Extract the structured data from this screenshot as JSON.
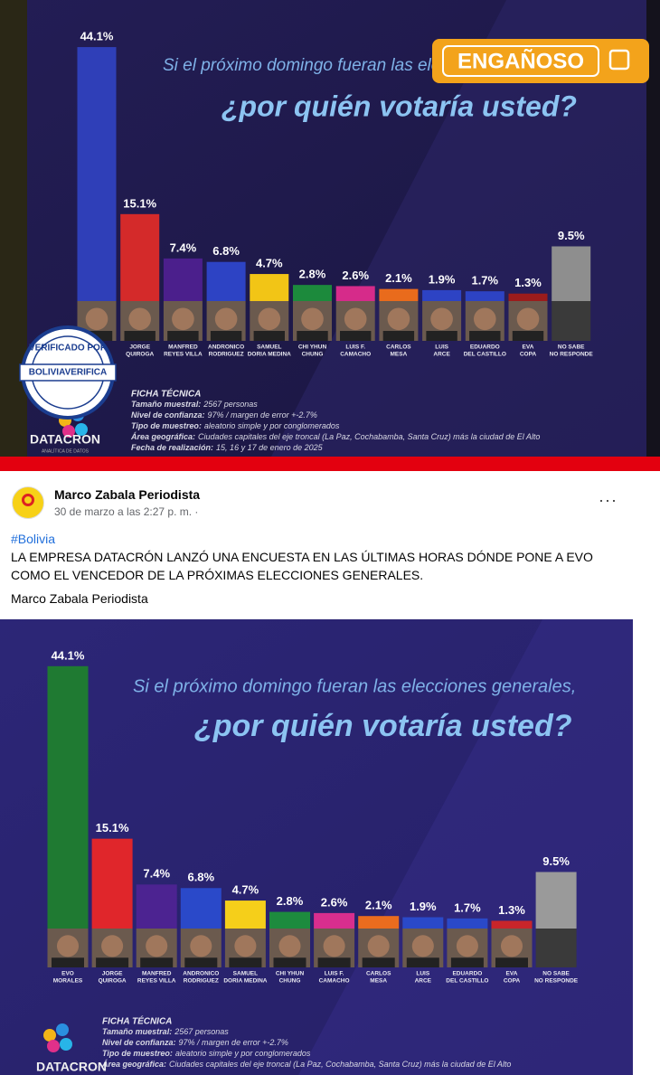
{
  "badge": "ENGAÑOSO",
  "stamp": {
    "top": "VERIFICADO POR",
    "brand": "BOLIVIAVERIFICA"
  },
  "post": {
    "author": "Marco Zabala Periodista",
    "time": "30 de marzo a las 2:27 p. m. ·",
    "menu": "···",
    "hashtag": "#Bolivia",
    "body": "LA EMPRESA DATACRÓN LANZÓ UNA ENCUESTA EN LAS ÚLTIMAS HORAS DÓNDE PONE A EVO COMO EL VENCEDOR DE LA PRÓXIMAS ELECCIONES GENERALES.",
    "signature": "Marco Zabala Periodista"
  },
  "chart_data": [
    {
      "type": "bar",
      "subtitle": "Si el próximo domingo fueran las elecciones generales,",
      "title": "¿por quién votaría usted?",
      "categories": [
        null,
        [
          "JORGE",
          "QUIROGA"
        ],
        [
          "MANFRED",
          "REYES VILLA"
        ],
        [
          "ANDRONICO",
          "RODRIGUEZ"
        ],
        [
          "SAMUEL",
          "DORIA MEDINA"
        ],
        [
          "CHI YHUN",
          "CHUNG"
        ],
        [
          "LUIS F.",
          "CAMACHO"
        ],
        [
          "CARLOS",
          "MESA"
        ],
        [
          "LUIS",
          "ARCE"
        ],
        [
          "EDUARDO",
          "DEL CASTILLO"
        ],
        [
          "EVA",
          "COPA"
        ],
        [
          "NO SABE",
          "NO RESPONDE"
        ]
      ],
      "values": [
        44.1,
        15.1,
        7.4,
        6.8,
        4.7,
        2.8,
        2.6,
        2.1,
        1.9,
        1.7,
        1.3,
        9.5
      ],
      "value_labels": [
        "44.1%",
        "15.1%",
        "7.4%",
        "6.8%",
        "4.7%",
        "2.8%",
        "2.6%",
        "2.1%",
        "1.9%",
        "1.7%",
        "1.3%",
        "9.5%"
      ],
      "colors": [
        "#2f3fb8",
        "#d42a2a",
        "#4b1f8c",
        "#2d43c4",
        "#f2c516",
        "#1c8a3c",
        "#d62b8a",
        "#e96b1c",
        "#2d43c4",
        "#2d43c4",
        "#9b1c1c",
        "#8e8e8e"
      ],
      "ficha": {
        "heading": "FICHA TÉCNICA",
        "lines": [
          {
            "label": "Tamaño muestral:",
            "text": "2567 personas"
          },
          {
            "label": "Nivel de confianza:",
            "text": "97% / margen de error +-2.7%"
          },
          {
            "label": "Tipo de muestreo:",
            "text": "aleatorio simple y por conglomerados"
          },
          {
            "label": "Área geográfica:",
            "text": "Ciudades capitales del eje troncal (La Paz, Cochabamba, Santa Cruz) más la ciudad de El Alto"
          },
          {
            "label": "Fecha de realización:",
            "text": "15, 16 y 17 de enero de 2025"
          }
        ]
      },
      "brand": "DATACRON",
      "tagline": "ANALÍTICA DE DATOS"
    },
    {
      "type": "bar",
      "subtitle": "Si el próximo domingo fueran las elecciones generales,",
      "title": "¿por quién votaría usted?",
      "categories": [
        [
          "EVO",
          "MORALES"
        ],
        [
          "JORGE",
          "QUIROGA"
        ],
        [
          "MANFRED",
          "REYES VILLA"
        ],
        [
          "ANDRONICO",
          "RODRIGUEZ"
        ],
        [
          "SAMUEL",
          "DORIA MEDINA"
        ],
        [
          "CHI YHUN",
          "CHUNG"
        ],
        [
          "LUIS F.",
          "CAMACHO"
        ],
        [
          "CARLOS",
          "MESA"
        ],
        [
          "LUIS",
          "ARCE"
        ],
        [
          "EDUARDO",
          "DEL CASTILLO"
        ],
        [
          "EVA",
          "COPA"
        ],
        [
          "NO SABE",
          "NO RESPONDE"
        ]
      ],
      "values": [
        44.1,
        15.1,
        7.4,
        6.8,
        4.7,
        2.8,
        2.6,
        2.1,
        1.9,
        1.7,
        1.3,
        9.5
      ],
      "value_labels": [
        "44.1%",
        "15.1%",
        "7.4%",
        "6.8%",
        "4.7%",
        "2.8%",
        "2.6%",
        "2.1%",
        "1.9%",
        "1.7%",
        "1.3%",
        "9.5%"
      ],
      "colors": [
        "#1f7a32",
        "#e0262b",
        "#4c2391",
        "#2a49c9",
        "#f5cf1a",
        "#1d8b3e",
        "#d82e8e",
        "#ea6c1e",
        "#2a49c9",
        "#2a49c9",
        "#c9252a",
        "#9a9a9a"
      ],
      "ficha": {
        "heading": "FICHA TÉCNICA",
        "lines": [
          {
            "label": "Tamaño muestral:",
            "text": "2567 personas"
          },
          {
            "label": "Nivel de confianza:",
            "text": "97% / margen de error +-2.7%"
          },
          {
            "label": "Tipo de muestreo:",
            "text": "aleatorio simple y por conglomerados"
          },
          {
            "label": "Área geográfica:",
            "text": "Ciudades capitales del eje troncal (La Paz, Cochabamba, Santa Cruz) más la ciudad de El Alto"
          }
        ]
      },
      "brand": "DATACRON"
    }
  ]
}
